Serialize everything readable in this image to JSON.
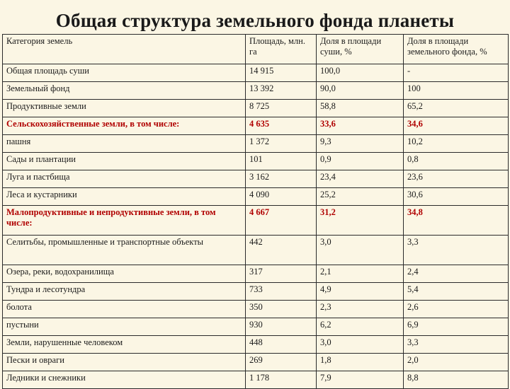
{
  "title": "Общая структура земельного фонда планеты",
  "table": {
    "headers": [
      "Категория земель",
      "Площадь, млн. га",
      "Доля в площади суши, %",
      "Доля в площади земельного фонда, %"
    ],
    "rows": [
      {
        "cells": [
          "Общая площадь суши",
          "14 915",
          "100,0",
          "-"
        ],
        "highlight": false
      },
      {
        "cells": [
          "Земельный фонд",
          "13 392",
          "90,0",
          "100"
        ],
        "highlight": false
      },
      {
        "cells": [
          "Продуктивные земли",
          "8 725",
          "58,8",
          "65,2"
        ],
        "highlight": false
      },
      {
        "cells": [
          "Сельскохозяйственные земли, в том числе:",
          "4 635",
          "33,6",
          "34,6"
        ],
        "highlight": true
      },
      {
        "cells": [
          "пашня",
          "1 372",
          "9,3",
          "10,2"
        ],
        "highlight": false
      },
      {
        "cells": [
          "Сады и плантации",
          "101",
          "0,9",
          "0,8"
        ],
        "highlight": false
      },
      {
        "cells": [
          "Луга и пастбища",
          "3 162",
          "23,4",
          "23,6"
        ],
        "highlight": false
      },
      {
        "cells": [
          "Леса и кустарники",
          "4 090",
          "25,2",
          "30,6"
        ],
        "highlight": false
      },
      {
        "cells": [
          "Малопродуктивные и непродуктивные земли, в том числе:",
          "4 667",
          "31,2",
          "34,8"
        ],
        "highlight": true
      },
      {
        "cells": [
          "Селитьбы, промышленные и транспортные объекты",
          "442",
          "3,0",
          "3,3"
        ],
        "highlight": false
      },
      {
        "cells": [
          "Озера, реки, водохранилища",
          "317",
          "2,1",
          "2,4"
        ],
        "highlight": false
      },
      {
        "cells": [
          "Тундра и лесотундра",
          "733",
          "4,9",
          "5,4"
        ],
        "highlight": false
      },
      {
        "cells": [
          "болота",
          "350",
          "2,3",
          "2,6"
        ],
        "highlight": false
      },
      {
        "cells": [
          "пустыни",
          "930",
          "6,2",
          "6,9"
        ],
        "highlight": false
      },
      {
        "cells": [
          "Земли, нарушенные человеком",
          "448",
          "3,0",
          "3,3"
        ],
        "highlight": false
      },
      {
        "cells": [
          "Пески и овраги",
          "269",
          "1,8",
          "2,0"
        ],
        "highlight": false
      },
      {
        "cells": [
          "Ледники и снежники",
          "1 178",
          "7,9",
          "8,8"
        ],
        "highlight": false
      }
    ],
    "highlight_color": "#b00000"
  }
}
